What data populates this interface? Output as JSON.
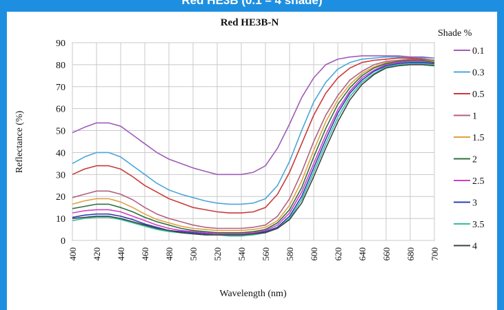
{
  "page": {
    "top_caption": "Red HE3B (0.1 – 4 shade)"
  },
  "chart_data": {
    "type": "line",
    "title": "Red HE3B-N",
    "xlabel": "Wavelength  (nm)",
    "ylabel": "Reflectance  (%)",
    "xlim": [
      400,
      700
    ],
    "ylim": [
      0,
      90
    ],
    "x_ticks": [
      400,
      420,
      440,
      460,
      480,
      500,
      520,
      540,
      560,
      580,
      600,
      620,
      640,
      660,
      680,
      700
    ],
    "y_ticks": [
      0,
      10,
      20,
      30,
      40,
      50,
      60,
      70,
      80,
      90
    ],
    "grid": true,
    "legend_title": "Shade %",
    "legend_position": "right",
    "x": [
      400,
      410,
      420,
      430,
      440,
      450,
      460,
      470,
      480,
      490,
      500,
      510,
      520,
      530,
      540,
      550,
      560,
      570,
      580,
      590,
      600,
      610,
      620,
      630,
      640,
      650,
      660,
      670,
      680,
      690,
      700
    ],
    "series": [
      {
        "name": "0.1",
        "color": "#a05bb8",
        "values": [
          49,
          51.5,
          53.5,
          53.5,
          52,
          48,
          44,
          40,
          37,
          35,
          33,
          31.5,
          30,
          30,
          30,
          31,
          34,
          42,
          53,
          65,
          74,
          80,
          82.5,
          83.5,
          84,
          84,
          84,
          84,
          83.5,
          83.5,
          83
        ]
      },
      {
        "name": "0.3",
        "color": "#4aa6d8",
        "values": [
          35,
          38,
          40,
          40,
          38,
          34,
          30,
          26,
          23,
          21,
          19.5,
          18,
          17,
          16.5,
          16.5,
          17,
          19,
          25,
          36,
          50,
          63,
          72,
          78,
          81,
          82.5,
          83,
          83.5,
          83.5,
          83,
          83,
          83
        ]
      },
      {
        "name": "0.5",
        "color": "#c83a3a",
        "values": [
          30,
          32.5,
          34,
          34,
          32.5,
          29,
          25,
          22,
          19,
          17,
          15,
          14,
          13,
          12.5,
          12.5,
          13,
          15,
          21,
          31,
          44,
          57,
          67,
          74,
          78.5,
          81,
          82,
          82.5,
          83,
          83,
          82.5,
          82
        ]
      },
      {
        "name": "1",
        "color": "#b06080",
        "values": [
          19.5,
          21,
          22.5,
          22.5,
          21,
          18.5,
          15,
          12,
          10,
          8.5,
          7,
          6,
          5.5,
          5.5,
          5.5,
          6,
          7,
          11,
          19,
          31,
          45,
          57,
          66,
          73,
          77,
          80,
          81.5,
          82,
          82.5,
          82,
          81.5
        ]
      },
      {
        "name": "1.5",
        "color": "#e0a040",
        "values": [
          16.5,
          18,
          19,
          19,
          17.5,
          15,
          12,
          9.5,
          8,
          6.5,
          5.5,
          5,
          4.5,
          4.5,
          4.5,
          5,
          6,
          9,
          16,
          27,
          41,
          54,
          64,
          71,
          76,
          79,
          81,
          81.5,
          82,
          82,
          81.5
        ]
      },
      {
        "name": "2",
        "color": "#2e7040",
        "values": [
          14.5,
          15.5,
          16.5,
          16.5,
          15,
          13,
          10.5,
          8.5,
          7,
          5.5,
          4.5,
          4,
          3.5,
          3.5,
          3.5,
          4,
          5,
          8,
          14,
          24,
          38,
          51,
          62,
          69.5,
          75,
          78.5,
          80.5,
          81.5,
          82,
          82,
          81
        ]
      },
      {
        "name": "2.5",
        "color": "#d040c0",
        "values": [
          12.5,
          13.5,
          14,
          14,
          13,
          11,
          9,
          7,
          5.5,
          4.5,
          4,
          3.5,
          3,
          3,
          3,
          3.5,
          4.5,
          7,
          12.5,
          22,
          35,
          48,
          59.5,
          68,
          74,
          77.5,
          80,
          81,
          81.5,
          81.5,
          80.5
        ]
      },
      {
        "name": "3",
        "color": "#2c3cb8",
        "values": [
          10.5,
          11.5,
          12,
          12,
          11,
          9.5,
          7.5,
          6,
          4.5,
          4,
          3.5,
          3,
          2.5,
          2.5,
          2.5,
          3,
          4,
          6,
          11,
          20,
          33,
          46,
          58,
          67,
          73,
          77,
          79.5,
          80.5,
          81,
          81,
          80.5
        ]
      },
      {
        "name": "3.5",
        "color": "#30c0a0",
        "values": [
          9,
          10,
          10.5,
          10.5,
          9.5,
          8,
          6.5,
          5,
          4,
          3.5,
          3,
          2.5,
          2.5,
          2,
          2,
          2.5,
          3.5,
          5.5,
          10,
          18.5,
          31,
          44,
          56,
          65.5,
          72,
          76,
          79,
          80,
          80.5,
          80.5,
          80
        ]
      },
      {
        "name": "4",
        "color": "#404040",
        "values": [
          10,
          10.5,
          11,
          11,
          10,
          8.5,
          7,
          5.5,
          4.5,
          3.5,
          3,
          2.5,
          2.5,
          2.5,
          2.5,
          3,
          3.5,
          5.5,
          9.5,
          17,
          29,
          42,
          54,
          64,
          71,
          75.5,
          78.5,
          79.5,
          80,
          80,
          79.5
        ]
      }
    ]
  }
}
